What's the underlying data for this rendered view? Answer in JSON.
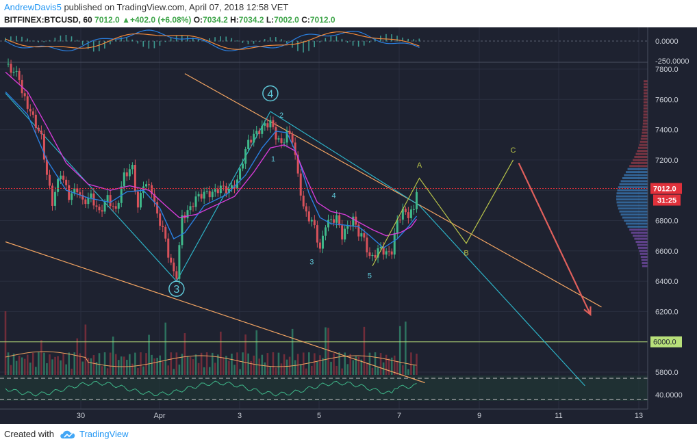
{
  "header": {
    "author": "AndrewDavis5",
    "published": " published on TradingView.com, April 07, 2018 12:58 VET",
    "symbol": "BITFINEX:BTCUSD, 60",
    "price": "7012.0",
    "change_arrow": "▲",
    "change": "+402.0 (+6.08%)",
    "o_label": "O:",
    "o_val": "7034.2",
    "h_label": "H:",
    "h_val": "7034.2",
    "l_label": "L:",
    "l_val": "7002.0",
    "c_label": "C:",
    "c_val": "7012.0"
  },
  "footer": {
    "created": "Created with",
    "brand": "TradingView"
  },
  "colors": {
    "background": "#1e2230",
    "up": "#3fb88a",
    "down": "#d8525b",
    "ma_blue": "#2a7fe0",
    "ma_magenta": "#d63bd8",
    "trend_orange": "#f2a462",
    "trend_teal": "#2db3c7",
    "projection": "#b8c44a",
    "target_arrow": "#e0605c",
    "price_label": "#e0313b",
    "support_label": "#b8e07a"
  },
  "chart_data": {
    "type": "candlestick",
    "symbol": "BITFINEX:BTCUSD",
    "timeframe": "60",
    "x_ticks": [
      "30",
      "Apr",
      "3",
      "5",
      "7",
      "9",
      "11",
      "13"
    ],
    "y_ticks": [
      "7800.0",
      "7600.0",
      "7400.0",
      "7200.0",
      "7000.0",
      "6800.0",
      "6600.0",
      "6400.0",
      "6200.0",
      "6000.0",
      "5800.0"
    ],
    "ylim": [
      5720,
      7830
    ],
    "price_label": "7012.0",
    "countdown_label": "31:25",
    "support_level": 6000,
    "support_label": "6000.0",
    "oscillator_ticks": [
      "0.0000",
      "-250.0000"
    ],
    "rsi_tick": "40.0000",
    "price_path": [
      [
        0,
        7830
      ],
      [
        5,
        7750
      ],
      [
        6,
        7640
      ],
      [
        9,
        7520
      ],
      [
        13,
        7350
      ],
      [
        15,
        7100
      ],
      [
        17,
        6920
      ],
      [
        20,
        7120
      ],
      [
        23,
        6960
      ],
      [
        26,
        7010
      ],
      [
        28,
        6920
      ],
      [
        31,
        6960
      ],
      [
        34,
        6850
      ],
      [
        37,
        6950
      ],
      [
        40,
        6860
      ],
      [
        43,
        7100
      ],
      [
        46,
        7150
      ],
      [
        48,
        6880
      ],
      [
        50,
        7050
      ],
      [
        53,
        7000
      ],
      [
        55,
        6830
      ],
      [
        57,
        6750
      ],
      [
        59,
        6580
      ],
      [
        61,
        6450
      ],
      [
        62,
        6440
      ],
      [
        64,
        6820
      ],
      [
        67,
        6880
      ],
      [
        69,
        6950
      ],
      [
        72,
        6980
      ],
      [
        75,
        6980
      ],
      [
        78,
        7020
      ],
      [
        81,
        7000
      ],
      [
        84,
        7060
      ],
      [
        86,
        7200
      ],
      [
        88,
        7320
      ],
      [
        91,
        7380
      ],
      [
        94,
        7430
      ],
      [
        96,
        7450
      ],
      [
        98,
        7360
      ],
      [
        100,
        7300
      ],
      [
        102,
        7380
      ],
      [
        104,
        7340
      ],
      [
        106,
        7100
      ],
      [
        108,
        6880
      ],
      [
        110,
        6820
      ],
      [
        112,
        6760
      ],
      [
        114,
        6600
      ],
      [
        116,
        6780
      ],
      [
        118,
        6800
      ],
      [
        120,
        6820
      ],
      [
        122,
        6700
      ],
      [
        124,
        6760
      ],
      [
        126,
        6810
      ],
      [
        128,
        6720
      ],
      [
        130,
        6680
      ],
      [
        132,
        6550
      ],
      [
        134,
        6580
      ],
      [
        136,
        6620
      ],
      [
        138,
        6580
      ],
      [
        140,
        6600
      ],
      [
        142,
        6800
      ],
      [
        144,
        6860
      ],
      [
        146,
        6840
      ],
      [
        148,
        6870
      ],
      [
        149,
        7012
      ]
    ],
    "ma_blue": [
      [
        0,
        7650
      ],
      [
        8,
        7500
      ],
      [
        15,
        7200
      ],
      [
        22,
        7000
      ],
      [
        30,
        6950
      ],
      [
        38,
        6920
      ],
      [
        44,
        6990
      ],
      [
        50,
        7000
      ],
      [
        56,
        6880
      ],
      [
        61,
        6680
      ],
      [
        65,
        6720
      ],
      [
        72,
        6900
      ],
      [
        80,
        6970
      ],
      [
        87,
        7100
      ],
      [
        93,
        7280
      ],
      [
        98,
        7390
      ],
      [
        102,
        7380
      ],
      [
        106,
        7220
      ],
      [
        110,
        6980
      ],
      [
        114,
        6820
      ],
      [
        118,
        6780
      ],
      [
        123,
        6770
      ],
      [
        128,
        6760
      ],
      [
        132,
        6700
      ],
      [
        137,
        6620
      ],
      [
        142,
        6680
      ],
      [
        146,
        6760
      ],
      [
        149,
        6830
      ]
    ],
    "ma_magenta": [
      [
        0,
        7780
      ],
      [
        8,
        7650
      ],
      [
        15,
        7420
      ],
      [
        22,
        7180
      ],
      [
        30,
        7040
      ],
      [
        38,
        7000
      ],
      [
        45,
        7030
      ],
      [
        52,
        7000
      ],
      [
        58,
        6900
      ],
      [
        63,
        6820
      ],
      [
        69,
        6840
      ],
      [
        76,
        6900
      ],
      [
        83,
        6960
      ],
      [
        90,
        7120
      ],
      [
        96,
        7280
      ],
      [
        101,
        7300
      ],
      [
        105,
        7260
      ],
      [
        109,
        7080
      ],
      [
        113,
        6920
      ],
      [
        118,
        6860
      ],
      [
        123,
        6840
      ],
      [
        128,
        6790
      ],
      [
        133,
        6740
      ],
      [
        138,
        6700
      ],
      [
        143,
        6720
      ],
      [
        147,
        6760
      ],
      [
        149,
        6810
      ]
    ],
    "wave_labels": [
      {
        "text": "4",
        "x": 96,
        "y": 7640,
        "circle": true
      },
      {
        "text": "3",
        "x": 62,
        "y": 6350,
        "circle": true
      },
      {
        "text": "2",
        "x": 100,
        "y": 7480,
        "circle": false
      },
      {
        "text": "1",
        "x": 97,
        "y": 7190,
        "circle": false
      },
      {
        "text": "3",
        "x": 111,
        "y": 6510,
        "circle": false
      },
      {
        "text": "4",
        "x": 119,
        "y": 6950,
        "circle": false
      },
      {
        "text": "5",
        "x": 132,
        "y": 6420,
        "circle": false
      }
    ],
    "projection_labels": [
      {
        "text": "A",
        "x": 150,
        "y": 7150
      },
      {
        "text": "B",
        "x": 167,
        "y": 6570
      },
      {
        "text": "C",
        "x": 184,
        "y": 7250
      }
    ],
    "projection_path": [
      [
        133,
        6500
      ],
      [
        150,
        7080
      ],
      [
        167,
        6650
      ],
      [
        184,
        7200
      ]
    ],
    "trend_orange_upper": [
      [
        65,
        7770
      ],
      [
        216,
        6230
      ]
    ],
    "trend_orange_lower": [
      [
        0,
        6660
      ],
      [
        152,
        5730
      ]
    ],
    "trend_teal": [
      [
        0,
        7640
      ],
      [
        62,
        6400
      ],
      [
        96,
        7520
      ],
      [
        150,
        6900
      ],
      [
        210,
        5710
      ]
    ],
    "target_arrow": [
      [
        186,
        7180
      ],
      [
        212,
        6180
      ]
    ]
  }
}
